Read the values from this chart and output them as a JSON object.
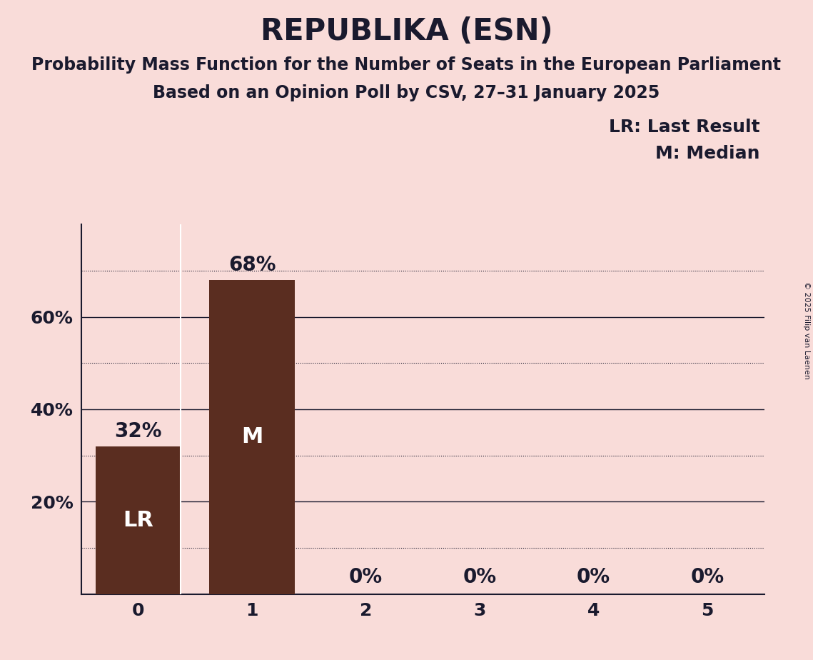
{
  "title": "REPUBLIKA (ESN)",
  "subtitle1": "Probability Mass Function for the Number of Seats in the European Parliament",
  "subtitle2": "Based on an Opinion Poll by CSV, 27–31 January 2025",
  "copyright": "© 2025 Filip van Laenen",
  "categories": [
    0,
    1,
    2,
    3,
    4,
    5
  ],
  "values": [
    0.32,
    0.68,
    0.0,
    0.0,
    0.0,
    0.0
  ],
  "bar_color": "#5a2d20",
  "background_color": "#f9dcd9",
  "label_color_inside": "#ffffff",
  "label_color_outside": "#1a1a2e",
  "lr_seat": 0,
  "median_seat": 1,
  "legend_lr": "LR: Last Result",
  "legend_m": "M: Median",
  "solid_grid_values": [
    0.2,
    0.4,
    0.6
  ],
  "dotted_grid_values": [
    0.1,
    0.3,
    0.5,
    0.7
  ],
  "title_fontsize": 30,
  "subtitle_fontsize": 17,
  "axis_tick_fontsize": 18,
  "bar_label_fontsize": 20,
  "inner_label_fontsize": 22,
  "legend_fontsize": 18
}
